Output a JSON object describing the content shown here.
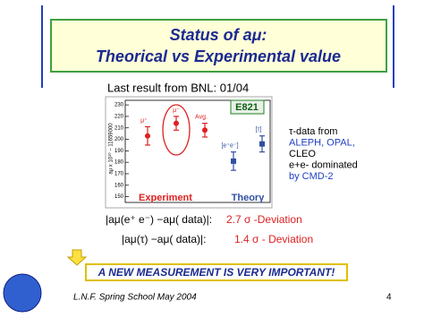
{
  "header": {
    "title": "Status of aμ:",
    "subtitle": "Theorical vs Experimental value"
  },
  "caption": "Last result from BNL: 01/04",
  "plot": {
    "y_label": "aμ x 10¹⁰ − 11659000",
    "experiment_tag": "E821",
    "ylim": [
      145,
      234
    ],
    "yticks": [
      150,
      160,
      170,
      180,
      190,
      200,
      210,
      220,
      230
    ],
    "points": [
      {
        "label": "μ⁺",
        "value": 203,
        "error": 8,
        "color": "#e02020"
      },
      {
        "label": "μ⁻",
        "value": 214,
        "error": 6,
        "color": "#e02020"
      },
      {
        "label": "Avg.",
        "value": 208,
        "error": 6,
        "color": "#e02020"
      },
      {
        "label": "[e⁺e⁻]",
        "value": 181,
        "error": 8,
        "color": "#3050a0"
      },
      {
        "label": "[τ]",
        "value": 196,
        "error": 7,
        "color": "#3050a0"
      }
    ],
    "group_labels": [
      "Experiment",
      "Theory"
    ]
  },
  "notes": [
    "τ-data from",
    "ALEPH, OPAL,",
    "CLEO",
    "e+e- dominated",
    "by CMD-2"
  ],
  "deviations": [
    {
      "expr": "|aμ(e⁺ e⁻) −aμ( data)|:",
      "result": "2.7 σ -Deviation"
    },
    {
      "expr": "|aμ(τ) −aμ( data)|:",
      "result": "1.4 σ - Deviation"
    }
  ],
  "banner": "A NEW MEASUREMENT IS VERY IMPORTANT!",
  "footer": {
    "text": "L.N.F. Spring School  May 2004",
    "page": "4"
  }
}
